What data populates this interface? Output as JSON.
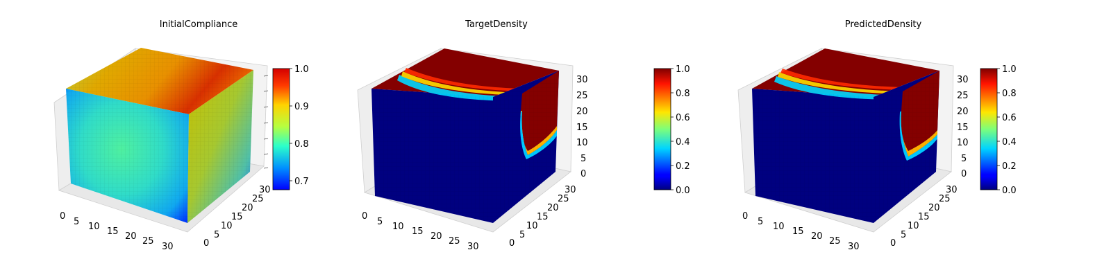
{
  "figure": {
    "background": "#ffffff",
    "colormap": "jet"
  },
  "chart_data": [
    {
      "type": "voxel-3d",
      "title": "InitialCompliance",
      "axes": {
        "x": {
          "ticks": [
            0,
            5,
            10,
            15,
            20,
            25,
            30
          ],
          "range": [
            0,
            32
          ]
        },
        "y": {
          "ticks": [
            0,
            5,
            10,
            15,
            20,
            25,
            30
          ],
          "range": [
            0,
            32
          ]
        },
        "z": {
          "ticks": [],
          "range": [
            0,
            32
          ]
        }
      },
      "faces": {
        "top": 0.88,
        "front": 0.77,
        "side": 0.85
      },
      "colorbar": {
        "min": 0.67,
        "max": 1.0,
        "ticks": [
          0.7,
          0.8,
          0.9,
          1.0
        ],
        "tick_labels": [
          "0.7",
          "0.8",
          "0.9",
          "1.0"
        ]
      }
    },
    {
      "type": "voxel-3d",
      "title": "TargetDensity",
      "axes": {
        "x": {
          "ticks": [
            0,
            5,
            10,
            15,
            20,
            25,
            30
          ],
          "range": [
            0,
            32
          ]
        },
        "y": {
          "ticks": [
            0,
            5,
            10,
            15,
            20,
            25,
            30
          ],
          "range": [
            0,
            32
          ]
        },
        "z": {
          "ticks": [
            0,
            5,
            10,
            15,
            20,
            25,
            30
          ],
          "range": [
            0,
            32
          ]
        }
      },
      "faces": {
        "top": 1.0,
        "front": 0.0,
        "side": 0.0
      },
      "colorbar": {
        "min": 0.0,
        "max": 1.0,
        "ticks": [
          0.0,
          0.2,
          0.4,
          0.6,
          0.8,
          1.0
        ],
        "tick_labels": [
          "0.0",
          "0.2",
          "0.4",
          "0.6",
          "0.8",
          "1.0"
        ]
      }
    },
    {
      "type": "voxel-3d",
      "title": "PredictedDensity",
      "axes": {
        "x": {
          "ticks": [
            0,
            5,
            10,
            15,
            20,
            25,
            30
          ],
          "range": [
            0,
            32
          ]
        },
        "y": {
          "ticks": [
            0,
            5,
            10,
            15,
            20,
            25,
            30
          ],
          "range": [
            0,
            32
          ]
        },
        "z": {
          "ticks": [
            0,
            5,
            10,
            15,
            20,
            25,
            30
          ],
          "range": [
            0,
            32
          ]
        }
      },
      "faces": {
        "top": 1.0,
        "front": 0.0,
        "side": 0.0
      },
      "colorbar": {
        "min": 0.0,
        "max": 1.0,
        "ticks": [
          0.0,
          0.2,
          0.4,
          0.6,
          0.8,
          1.0
        ],
        "tick_labels": [
          "0.0",
          "0.2",
          "0.4",
          "0.6",
          "0.8",
          "1.0"
        ]
      }
    }
  ]
}
